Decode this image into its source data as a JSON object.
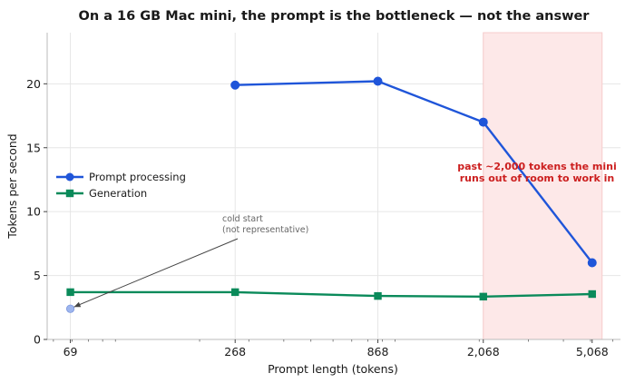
{
  "chart_data": {
    "type": "line",
    "title": "On a 16 GB Mac mini, the prompt is the bottleneck — not the answer",
    "xlabel": "Prompt length (tokens)",
    "ylabel": "Tokens per second",
    "x_scale": "log",
    "xlim": [
      57,
      6400
    ],
    "ylim": [
      0,
      24
    ],
    "x_ticks": [
      69,
      268,
      868,
      2068,
      5068
    ],
    "x_tick_labels": [
      "69",
      "268",
      "868",
      "2,068",
      "5,068"
    ],
    "y_ticks": [
      0,
      5,
      10,
      15,
      20
    ],
    "y_tick_labels": [
      "0",
      "5",
      "10",
      "15",
      "20"
    ],
    "grid": true,
    "legend_position": "center-left",
    "series": [
      {
        "name": "Prompt processing",
        "color": "#1f55d9",
        "marker": "circle",
        "points": [
          {
            "x": 268,
            "y": 19.9
          },
          {
            "x": 868,
            "y": 20.2
          },
          {
            "x": 2068,
            "y": 17.0
          },
          {
            "x": 5068,
            "y": 6.0
          }
        ]
      },
      {
        "name": "Generation",
        "color": "#0a8a5a",
        "marker": "square",
        "points": [
          {
            "x": 69,
            "y": 3.7
          },
          {
            "x": 268,
            "y": 3.7
          },
          {
            "x": 868,
            "y": 3.4
          },
          {
            "x": 2068,
            "y": 3.35
          },
          {
            "x": 5068,
            "y": 3.55
          }
        ]
      }
    ],
    "outlier_point": {
      "x": 69,
      "y": 2.4,
      "color": "#9db5ee"
    },
    "annotations": {
      "cold_start": {
        "lines": [
          "cold start",
          "(not representative)"
        ],
        "point_x": 69,
        "point_y": 2.4
      },
      "shaded_region": {
        "x_start": 2068,
        "x_end": 5500,
        "color": "#fde8e8",
        "lines": [
          "past ~2,000 tokens the mini",
          "runs out of room to work in"
        ]
      }
    }
  }
}
